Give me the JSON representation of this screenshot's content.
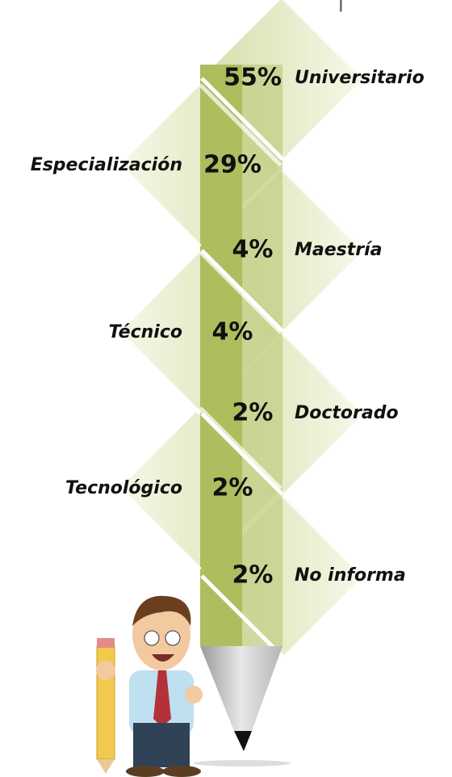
{
  "items": [
    {
      "label": "Universitario",
      "value": "55%"
    },
    {
      "label": "Especialización",
      "value": "29%"
    },
    {
      "label": "Maestría",
      "value": "4%"
    },
    {
      "label": "Técnico",
      "value": "4%"
    },
    {
      "label": "Doctorado",
      "value": "2%"
    },
    {
      "label": "Tecnológico",
      "value": "2%"
    },
    {
      "label": "No informa",
      "value": "2%"
    }
  ]
}
